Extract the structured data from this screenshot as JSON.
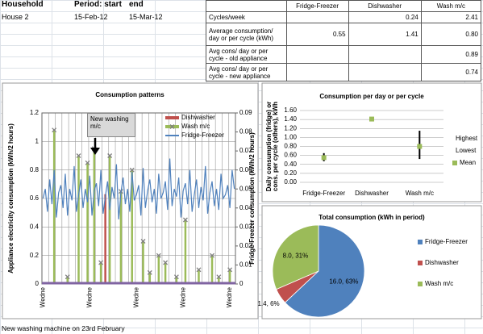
{
  "header": {
    "columns": [
      "Household",
      "Period: start",
      "end"
    ],
    "values": [
      "House 2",
      "15-Feb-12",
      "15-Mar-12"
    ]
  },
  "summary": {
    "columns": [
      "Fridge-Freezer",
      "Dishwasher",
      "Wash m/c"
    ],
    "rows": [
      {
        "label": "Cycles/week",
        "cells": [
          null,
          "0.24",
          "2.41"
        ]
      },
      {
        "label": "Average consumption/ day or per cycle (kWh)",
        "cells": [
          "0.55",
          "1.41",
          "0.80"
        ]
      },
      {
        "label": "Avg cons/ day or per cycle - old appliance",
        "cells": [
          null,
          null,
          "0.89"
        ]
      },
      {
        "label": "Avg cons/ day or per cycle - new appliance",
        "cells": [
          null,
          null,
          "0.74"
        ]
      }
    ]
  },
  "footnote": "New washing machine on 23rd February",
  "chart_data": [
    {
      "type": "combo",
      "title": "Consumption patterns",
      "ylabel": "Appliance electricity consumption (kWh/2 hours)",
      "y2label": "Fridge-Freezer consumption (kWh/2 hours)",
      "annotation": "New washing m/c",
      "categories": [
        "Wedne",
        null,
        null,
        null,
        null,
        null,
        null,
        null,
        null,
        null,
        null,
        null,
        null,
        null,
        null,
        null,
        null,
        null,
        null,
        null,
        null,
        "Wedne",
        null,
        null,
        null,
        null,
        null,
        null,
        null,
        null,
        null,
        null,
        null,
        null,
        null,
        null,
        null,
        null,
        null,
        null,
        null,
        null,
        "Wedne",
        null,
        null,
        null,
        null,
        null,
        null,
        null,
        null,
        null,
        null,
        null,
        null,
        null,
        null,
        null,
        null,
        null,
        null,
        null,
        null,
        "Wedne",
        null,
        null,
        null,
        null,
        null,
        null,
        null,
        null,
        null,
        null,
        null,
        null,
        null,
        null,
        null,
        null,
        null,
        null,
        null,
        null,
        "Wedne",
        null,
        null
      ],
      "ylim": [
        0,
        1.2
      ],
      "yticks": [
        0,
        0.2,
        0.4,
        0.6,
        0.8,
        1,
        1.2
      ],
      "y2lim": [
        0,
        0.09
      ],
      "y2ticks": [
        0,
        0.01,
        0.02,
        0.03,
        0.04,
        0.05,
        0.06,
        0.07,
        0.08,
        0.09
      ],
      "grid": true,
      "series": [
        {
          "name": "Dishwasher",
          "type": "bar",
          "color": "#c0504d",
          "values": [
            0,
            0,
            0,
            0,
            0,
            0,
            0,
            0,
            0,
            0,
            0,
            0,
            0,
            0,
            0,
            0,
            0,
            0,
            0,
            0,
            0,
            0,
            0,
            0,
            0,
            0,
            0,
            0,
            0.63,
            0,
            0,
            0,
            0,
            0,
            0,
            0,
            0,
            0,
            0,
            0,
            0,
            0,
            0,
            0,
            0,
            0,
            0,
            0,
            0,
            0,
            0,
            0,
            0,
            0,
            0,
            0,
            0,
            0,
            0,
            0,
            0,
            0,
            0,
            0,
            0,
            0,
            0,
            0,
            0,
            0,
            0,
            0,
            0,
            0,
            0,
            0,
            0,
            0,
            0,
            0,
            0,
            0,
            0,
            0,
            0,
            0,
            0
          ]
        },
        {
          "name": "Wash m/c",
          "type": "bar",
          "marker": "x",
          "color": "#9bbb59",
          "values": [
            0,
            0,
            0,
            0,
            0,
            1.08,
            0,
            0,
            0,
            0,
            0,
            0.05,
            0,
            0,
            0,
            0,
            0.9,
            0,
            0,
            0,
            0.85,
            0,
            0,
            0.95,
            0,
            0,
            0.15,
            0,
            0,
            0,
            0.9,
            0,
            0,
            0,
            0,
            0.65,
            0,
            0,
            0,
            0,
            0.8,
            0,
            0,
            0,
            0,
            0.3,
            0,
            0,
            0.08,
            0,
            0,
            0,
            0.2,
            0,
            0,
            0.15,
            0,
            0,
            0,
            0,
            0.05,
            0,
            0,
            0,
            0.45,
            0,
            0,
            0,
            0,
            0,
            0.1,
            0,
            0,
            0,
            0,
            0,
            0.2,
            0,
            0,
            0.05,
            0,
            0,
            0,
            0,
            0.1,
            0,
            0
          ]
        },
        {
          "name": "Fridge-Freezer",
          "type": "line",
          "axis": "y2",
          "color": "#4f81bd",
          "values": [
            0.045,
            0.05,
            0.038,
            0.055,
            0.042,
            0.06,
            0.035,
            0.048,
            0.052,
            0.04,
            0.058,
            0.036,
            0.05,
            0.044,
            0.062,
            0.038,
            0.047,
            0.055,
            0.04,
            0.05,
            0.043,
            0.057,
            0.036,
            0.049,
            0.053,
            0.041,
            0.06,
            0.037,
            0.046,
            0.054,
            0.039,
            0.051,
            0.045,
            0.063,
            0.034,
            0.048,
            0.056,
            0.042,
            0.05,
            0.038,
            0.059,
            0.044,
            0.047,
            0.052,
            0.036,
            0.061,
            0.04,
            0.049,
            0.055,
            0.043,
            0.05,
            0.037,
            0.058,
            0.045,
            0.048,
            0.054,
            0.039,
            0.066,
            0.041,
            0.05,
            0.046,
            0.056,
            0.035,
            0.049,
            0.053,
            0.042,
            0.06,
            0.038,
            0.047,
            0.055,
            0.04,
            0.051,
            0.044,
            0.062,
            0.037,
            0.048,
            0.054,
            0.041,
            0.05,
            0.039,
            0.058,
            0.045,
            0.047,
            0.052,
            0.04,
            0.06,
            0.05
          ]
        }
      ]
    },
    {
      "type": "high-low",
      "title": "Consumption per day or per cycle",
      "ylabel": [
        "Daily consumption (fridge) or",
        "cons. per cycle (others), kWh"
      ],
      "categories": [
        "Fridge-Freezer",
        "Dishwasher",
        "Wash m/c"
      ],
      "ylim": [
        0,
        1.6
      ],
      "yticks": [
        {
          "value": 0,
          "label": "0.00"
        },
        {
          "value": 0.2,
          "label": "0.20"
        },
        {
          "value": 0.4,
          "label": "0.40"
        },
        {
          "value": 0.6,
          "label": "0.60"
        },
        {
          "value": 0.8,
          "label": "0.80"
        },
        {
          "value": 1,
          "label": "1.00"
        },
        {
          "value": 1.2,
          "label": "1.20"
        },
        {
          "value": 1.4,
          "label": "1.40"
        },
        {
          "value": 1.6,
          "label": "1.60"
        }
      ],
      "grid": true,
      "series": [
        {
          "name": "Highest",
          "color": "#000000",
          "values": [
            0.65,
            1.41,
            1.15
          ]
        },
        {
          "name": "Lowest",
          "color": "#000000",
          "values": [
            0.47,
            1.39,
            0.52
          ]
        },
        {
          "name": "Mean",
          "color": "#9bbb59",
          "values": [
            0.55,
            1.41,
            0.8
          ]
        }
      ]
    },
    {
      "type": "pie",
      "title": "Total consumption (kWh in period)",
      "categories": [
        "Fridge-Freezer",
        "Dishwasher",
        "Wash m/c"
      ],
      "values": [
        16.0,
        1.4,
        8.0
      ],
      "value_labels": [
        "16.0, 63%",
        "1.4, 6%",
        "8.0, 31%"
      ],
      "colors": [
        "#4f81bd",
        "#c0504d",
        "#9bbb59"
      ]
    }
  ]
}
